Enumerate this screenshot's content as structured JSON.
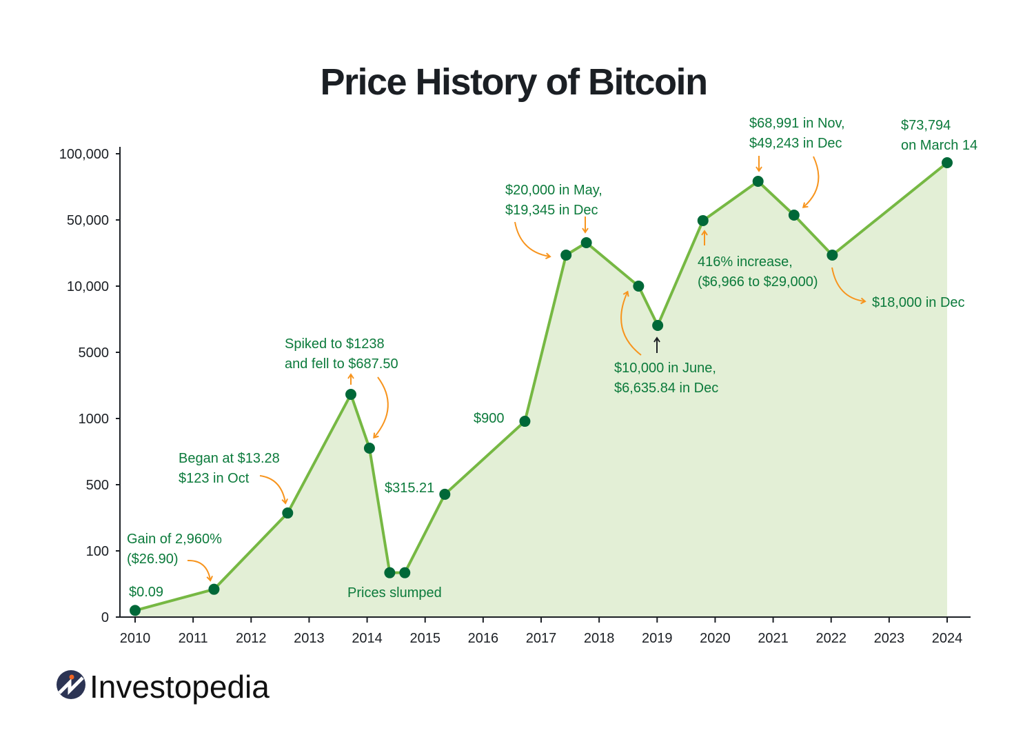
{
  "chart_data": {
    "type": "area",
    "title": "Price History of Bitcoin",
    "xlabel": "",
    "ylabel": "",
    "x_ticks": [
      "2010",
      "2011",
      "2012",
      "2013",
      "2014",
      "2015",
      "2016",
      "2017",
      "2018",
      "2019",
      "2020",
      "2021",
      "2022",
      "2023",
      "2024"
    ],
    "xlim": [
      2010,
      2024
    ],
    "y_ticks": [
      0,
      100,
      500,
      1000,
      5000,
      10000,
      50000,
      100000
    ],
    "y_tick_labels": [
      "0",
      "100",
      "500",
      "1000",
      "5000",
      "10,000",
      "50,000",
      "100,000"
    ],
    "y_scale": "non-uniform (equally spaced ticks)",
    "ylim": [
      0,
      100000
    ],
    "grid": false,
    "legend": "none",
    "colors": {
      "line": "#76b843",
      "fill": "#e3efd6",
      "marker": "#006838",
      "annotation_text": "#0b7a3b",
      "annotation_arrow": "#f7941d"
    },
    "points": [
      {
        "x": 2010.0,
        "y": 10
      },
      {
        "x": 2011.36,
        "y": 42
      },
      {
        "x": 2012.63,
        "y": 329
      },
      {
        "x": 2013.72,
        "y": 2458
      },
      {
        "x": 2014.04,
        "y": 776
      },
      {
        "x": 2014.39,
        "y": 67
      },
      {
        "x": 2014.65,
        "y": 67
      },
      {
        "x": 2015.34,
        "y": 442
      },
      {
        "x": 2016.72,
        "y": 979
      },
      {
        "x": 2017.43,
        "y": 28750
      },
      {
        "x": 2017.78,
        "y": 36250
      },
      {
        "x": 2018.68,
        "y": 10000
      },
      {
        "x": 2019.01,
        "y": 7031
      },
      {
        "x": 2019.79,
        "y": 49600
      },
      {
        "x": 2020.74,
        "y": 79167
      },
      {
        "x": 2021.36,
        "y": 53646
      },
      {
        "x": 2022.02,
        "y": 28750
      },
      {
        "x": 2024.0,
        "y": 93229
      }
    ],
    "annotations": [
      {
        "lines": [
          "$0.09"
        ]
      },
      {
        "lines": [
          "Gain of 2,960%",
          "($26.90)"
        ]
      },
      {
        "lines": [
          "Began at $13.28",
          "$123 in Oct"
        ]
      },
      {
        "lines": [
          "Spiked to $1238",
          "and fell to $687.50"
        ]
      },
      {
        "lines": [
          "Prices slumped"
        ]
      },
      {
        "lines": [
          "$315.21"
        ]
      },
      {
        "lines": [
          "$900"
        ]
      },
      {
        "lines": [
          "$20,000 in May,",
          "$19,345 in Dec"
        ]
      },
      {
        "lines": [
          "$10,000 in June,",
          "$6,635.84 in Dec"
        ]
      },
      {
        "lines": [
          "416% increase,",
          "($6,966 to $29,000)"
        ]
      },
      {
        "lines": [
          "$68,991 in Nov,",
          "$49,243 in Dec"
        ]
      },
      {
        "lines": [
          "$73,794",
          "on March 14"
        ]
      },
      {
        "lines": [
          "$18,000 in Dec"
        ]
      }
    ]
  },
  "branding": {
    "logo_text": "Investopedia",
    "logo_icon": "investopedia-i-icon"
  }
}
